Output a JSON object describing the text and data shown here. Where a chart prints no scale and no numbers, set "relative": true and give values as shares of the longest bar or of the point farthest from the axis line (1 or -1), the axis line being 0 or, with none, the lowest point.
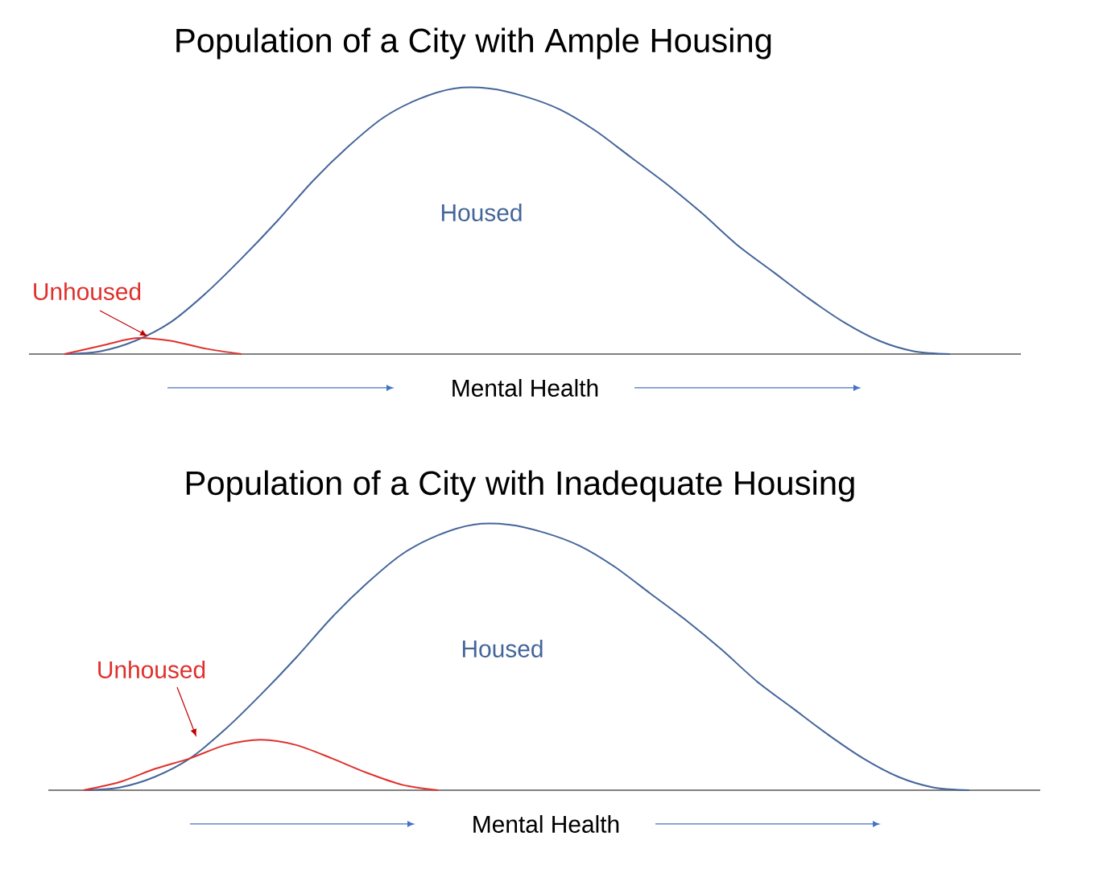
{
  "chart_data": [
    {
      "type": "line",
      "title": "Population of a City with Ample Housing",
      "xlabel": "Mental Health",
      "relative": true,
      "categories": [
        null,
        null,
        null,
        null,
        null,
        null,
        null,
        null,
        null,
        null,
        null,
        null,
        null,
        null,
        null,
        null,
        null,
        null,
        null,
        null,
        null,
        null,
        null,
        null,
        null,
        null,
        null,
        null,
        null
      ],
      "series": [
        {
          "name": "Housed",
          "color": "#44659a",
          "values": [
            null,
            0,
            0.01,
            0.05,
            0.12,
            0.23,
            0.36,
            0.5,
            0.65,
            0.78,
            0.89,
            0.96,
            1,
            1,
            0.97,
            0.92,
            0.84,
            0.74,
            0.64,
            0.53,
            0.41,
            0.31,
            0.21,
            0.12,
            0.05,
            0.01,
            0,
            null,
            null
          ]
        },
        {
          "name": "Unhoused",
          "color": "#e0302c",
          "values": [
            null,
            0,
            0.03,
            0.06,
            0.05,
            0.02,
            0,
            null,
            null,
            null,
            null,
            null,
            null,
            null,
            null,
            null,
            null,
            null,
            null,
            null,
            null,
            null,
            null,
            null,
            null,
            null,
            null,
            null,
            null
          ]
        }
      ]
    },
    {
      "type": "line",
      "title": "Population of a City with Inadequate Housing",
      "xlabel": "Mental Health",
      "relative": true,
      "categories": [
        null,
        null,
        null,
        null,
        null,
        null,
        null,
        null,
        null,
        null,
        null,
        null,
        null,
        null,
        null,
        null,
        null,
        null,
        null,
        null,
        null,
        null,
        null,
        null,
        null,
        null,
        null,
        null,
        null
      ],
      "series": [
        {
          "name": "Housed",
          "color": "#44659a",
          "values": [
            null,
            0,
            0.01,
            0.05,
            0.12,
            0.23,
            0.36,
            0.5,
            0.65,
            0.78,
            0.89,
            0.96,
            1,
            1,
            0.97,
            0.92,
            0.84,
            0.74,
            0.64,
            0.53,
            0.41,
            0.31,
            0.21,
            0.12,
            0.05,
            0.01,
            0,
            null,
            null
          ]
        },
        {
          "name": "Unhoused",
          "color": "#e0302c",
          "values": [
            null,
            0,
            0.03,
            0.08,
            0.12,
            0.17,
            0.19,
            0.17,
            0.12,
            0.065,
            0.02,
            0,
            null,
            null,
            null,
            null,
            null,
            null,
            null,
            null,
            null,
            null,
            null,
            null,
            null,
            null,
            null,
            null,
            null
          ]
        }
      ]
    }
  ]
}
